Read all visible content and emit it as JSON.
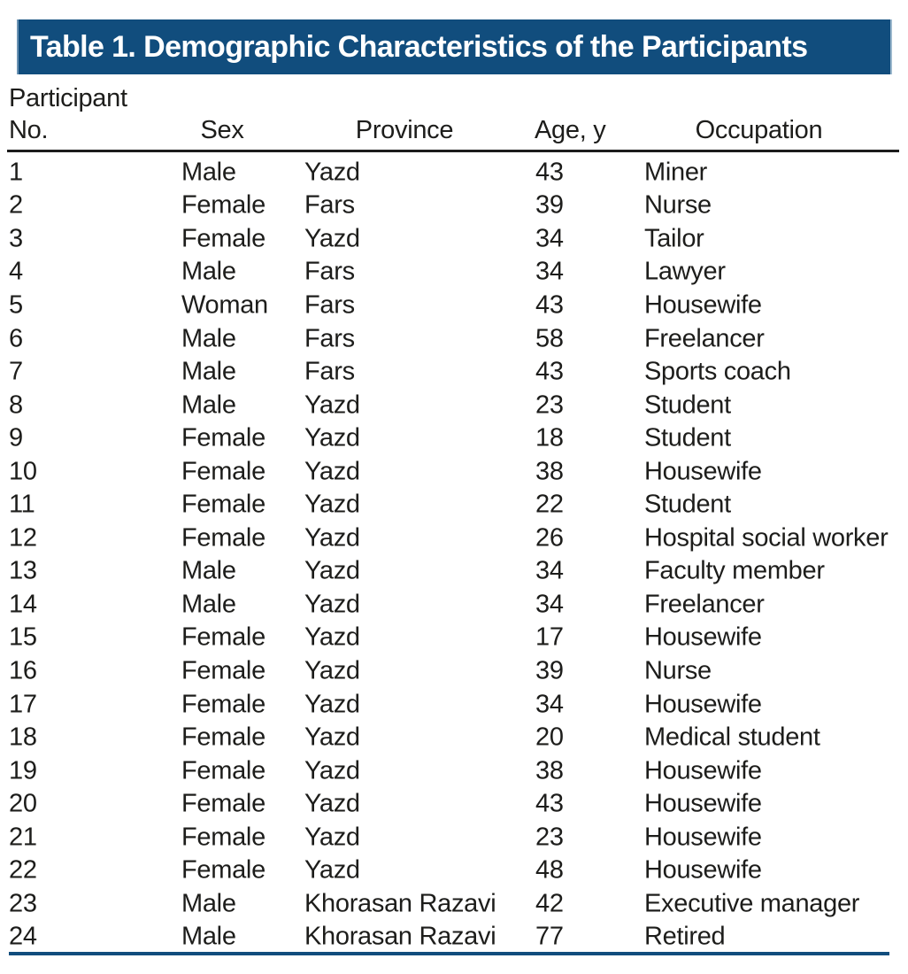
{
  "title": "Table 1. Demographic Characteristics of the Participants",
  "colors": {
    "title_bar_background": "#114d7d",
    "title_text": "#ffffff",
    "header_rule": "#1c1c1c",
    "bottom_rule": "#114d7d",
    "body_text": "#1d1d1b"
  },
  "table": {
    "headers": {
      "participant_no": "Participant\nNo.",
      "sex": "Sex",
      "province": "Province",
      "age": "Age, y",
      "occupation": "Occupation"
    },
    "rows": [
      {
        "no": "1",
        "sex": "Male",
        "province": "Yazd",
        "age": "43",
        "occupation": "Miner"
      },
      {
        "no": "2",
        "sex": "Female",
        "province": "Fars",
        "age": "39",
        "occupation": "Nurse"
      },
      {
        "no": "3",
        "sex": "Female",
        "province": "Yazd",
        "age": "34",
        "occupation": "Tailor"
      },
      {
        "no": "4",
        "sex": "Male",
        "province": "Fars",
        "age": "34",
        "occupation": "Lawyer"
      },
      {
        "no": "5",
        "sex": "Woman",
        "province": "Fars",
        "age": "43",
        "occupation": "Housewife"
      },
      {
        "no": "6",
        "sex": "Male",
        "province": "Fars",
        "age": "58",
        "occupation": "Freelancer"
      },
      {
        "no": "7",
        "sex": "Male",
        "province": "Fars",
        "age": "43",
        "occupation": "Sports coach"
      },
      {
        "no": "8",
        "sex": "Male",
        "province": "Yazd",
        "age": "23",
        "occupation": "Student"
      },
      {
        "no": "9",
        "sex": "Female",
        "province": "Yazd",
        "age": "18",
        "occupation": "Student"
      },
      {
        "no": "10",
        "sex": "Female",
        "province": "Yazd",
        "age": "38",
        "occupation": "Housewife"
      },
      {
        "no": "11",
        "sex": "Female",
        "province": "Yazd",
        "age": "22",
        "occupation": "Student"
      },
      {
        "no": "12",
        "sex": "Female",
        "province": "Yazd",
        "age": "26",
        "occupation": "Hospital social worker"
      },
      {
        "no": "13",
        "sex": "Male",
        "province": "Yazd",
        "age": "34",
        "occupation": "Faculty member"
      },
      {
        "no": "14",
        "sex": "Male",
        "province": "Yazd",
        "age": "34",
        "occupation": "Freelancer"
      },
      {
        "no": "15",
        "sex": "Female",
        "province": "Yazd",
        "age": "17",
        "occupation": "Housewife"
      },
      {
        "no": "16",
        "sex": "Female",
        "province": "Yazd",
        "age": "39",
        "occupation": "Nurse"
      },
      {
        "no": "17",
        "sex": "Female",
        "province": "Yazd",
        "age": "34",
        "occupation": "Housewife"
      },
      {
        "no": "18",
        "sex": "Female",
        "province": "Yazd",
        "age": "20",
        "occupation": "Medical student"
      },
      {
        "no": "19",
        "sex": "Female",
        "province": "Yazd",
        "age": "38",
        "occupation": "Housewife"
      },
      {
        "no": "20",
        "sex": "Female",
        "province": "Yazd",
        "age": "43",
        "occupation": "Housewife"
      },
      {
        "no": "21",
        "sex": "Female",
        "province": "Yazd",
        "age": "23",
        "occupation": "Housewife"
      },
      {
        "no": "22",
        "sex": "Female",
        "province": "Yazd",
        "age": "48",
        "occupation": "Housewife"
      },
      {
        "no": "23",
        "sex": "Male",
        "province": "Khorasan Razavi",
        "age": "42",
        "occupation": "Executive manager"
      },
      {
        "no": "24",
        "sex": "Male",
        "province": "Khorasan Razavi",
        "age": "77",
        "occupation": "Retired"
      }
    ]
  }
}
